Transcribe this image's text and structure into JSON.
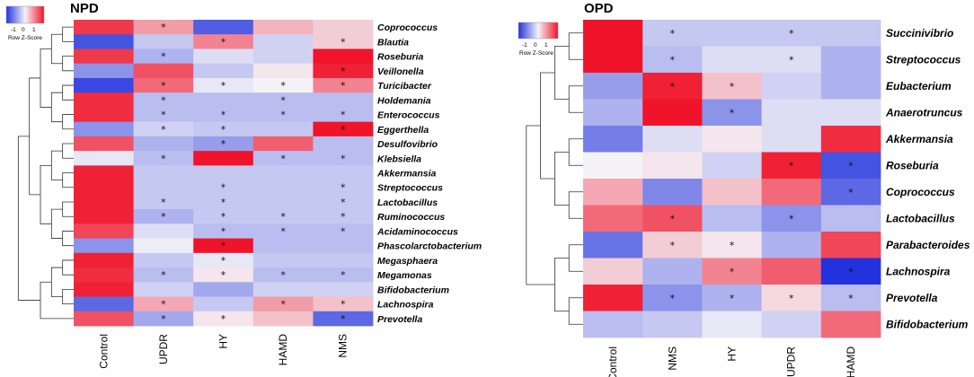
{
  "colors": {
    "low": "#2233dd",
    "mid": "#f4f2f7",
    "high": "#f0142a"
  },
  "chart_data": [
    {
      "type": "heatmap",
      "title": "NPD",
      "legend_label": "Row Z-Score",
      "legend_ticks": [
        "-1",
        "0",
        "1"
      ],
      "columns": [
        "Control",
        "UPDR",
        "HY",
        "HAMD",
        "NMS"
      ],
      "rows": [
        "Coprococcus",
        "Blautia",
        "Roseburia",
        "Veillonella",
        "Turicibacter",
        "Holdemania",
        "Enterococcus",
        "Eggerthella",
        "Desulfovibrio",
        "Klebsiella",
        "Akkermansia",
        "Streptococcus",
        "Lactobacillus",
        "Ruminococcus",
        "Acidaminococcus",
        "Phascolarctobacterium",
        "Megasphaera",
        "Megamonas",
        "Bifidobacterium",
        "Lachnospira",
        "Prevotella"
      ],
      "values": [
        [
          1.5,
          0.7,
          -1.4,
          0.5,
          0.3
        ],
        [
          -1.5,
          -0.4,
          0.9,
          -0.3,
          0.3
        ],
        [
          1.5,
          -0.6,
          -0.2,
          -0.3,
          1.8
        ],
        [
          -0.9,
          1.3,
          -0.4,
          0.1,
          1.7
        ],
        [
          -1.6,
          1.1,
          -0.1,
          0.0,
          0.9
        ],
        [
          1.6,
          -0.5,
          -0.5,
          -0.5,
          -0.5
        ],
        [
          1.6,
          -0.5,
          -0.5,
          -0.5,
          -0.5
        ],
        [
          -0.9,
          -0.3,
          -0.4,
          -0.4,
          2.0
        ],
        [
          1.3,
          -0.6,
          -0.8,
          1.2,
          -0.5
        ],
        [
          -0.1,
          -0.5,
          1.9,
          -0.5,
          -0.5
        ],
        [
          1.7,
          -0.4,
          -0.4,
          -0.4,
          -0.4
        ],
        [
          1.7,
          -0.4,
          -0.4,
          -0.4,
          -0.4
        ],
        [
          1.7,
          -0.4,
          -0.4,
          -0.4,
          -0.4
        ],
        [
          1.7,
          -0.6,
          -0.4,
          -0.4,
          -0.4
        ],
        [
          1.4,
          -0.2,
          -0.5,
          -0.5,
          -0.5
        ],
        [
          -0.9,
          -0.05,
          2.0,
          -0.5,
          -0.5
        ],
        [
          1.7,
          -0.4,
          -0.1,
          -0.4,
          -0.4
        ],
        [
          1.6,
          -0.5,
          0.1,
          -0.5,
          -0.5
        ],
        [
          1.7,
          -0.3,
          -0.7,
          -0.3,
          -0.3
        ],
        [
          -1.3,
          0.6,
          -0.4,
          0.7,
          0.4
        ],
        [
          1.3,
          -0.7,
          0.1,
          0.4,
          -1.3
        ]
      ],
      "significance_marker": "*",
      "significant": [
        [
          false,
          true,
          false,
          false,
          false
        ],
        [
          false,
          false,
          true,
          false,
          true
        ],
        [
          false,
          true,
          false,
          false,
          false
        ],
        [
          false,
          false,
          false,
          false,
          true
        ],
        [
          false,
          true,
          true,
          true,
          true
        ],
        [
          false,
          true,
          false,
          true,
          false
        ],
        [
          false,
          true,
          true,
          true,
          true
        ],
        [
          false,
          true,
          true,
          false,
          true
        ],
        [
          false,
          false,
          true,
          false,
          false
        ],
        [
          false,
          true,
          false,
          true,
          true
        ],
        [
          false,
          false,
          false,
          false,
          false
        ],
        [
          false,
          false,
          true,
          false,
          true
        ],
        [
          false,
          true,
          true,
          false,
          true
        ],
        [
          false,
          true,
          true,
          true,
          true
        ],
        [
          false,
          false,
          true,
          true,
          true
        ],
        [
          false,
          false,
          true,
          false,
          false
        ],
        [
          false,
          false,
          true,
          false,
          false
        ],
        [
          false,
          true,
          true,
          true,
          true
        ],
        [
          false,
          false,
          false,
          false,
          false
        ],
        [
          false,
          true,
          false,
          true,
          true
        ],
        [
          false,
          true,
          true,
          false,
          true
        ]
      ],
      "legend": "top-left"
    },
    {
      "type": "heatmap",
      "title": "OPD",
      "legend_label": "Row Z-Score",
      "legend_ticks": [
        "-1",
        "0",
        "1"
      ],
      "columns": [
        "Control",
        "NMS",
        "HY",
        "UPDR",
        "HAMD"
      ],
      "rows": [
        "Succinivibrio",
        "Streptococcus",
        "Eubacterium",
        "Anaerotruncus",
        "Akkermansia",
        "Roseburia",
        "Coprococcus",
        "Lactobacillus",
        "Parabacteroides",
        "Lachnospira",
        "Prevotella",
        "Bifidobacterium"
      ],
      "values": [
        [
          1.8,
          -0.4,
          -0.4,
          -0.4,
          -0.4
        ],
        [
          1.8,
          -0.5,
          -0.2,
          -0.2,
          -0.6
        ],
        [
          -0.8,
          1.7,
          0.4,
          -0.3,
          -0.6
        ],
        [
          -0.6,
          1.9,
          -0.9,
          -0.2,
          -0.2
        ],
        [
          -1.1,
          -0.2,
          0.1,
          -0.2,
          1.6
        ],
        [
          0.0,
          0.1,
          -0.3,
          1.7,
          -1.5
        ],
        [
          0.6,
          -1.0,
          0.4,
          1.1,
          -1.3
        ],
        [
          1.1,
          1.3,
          -0.5,
          -0.9,
          -0.5
        ],
        [
          -1.2,
          0.3,
          0.1,
          -0.6,
          1.4
        ],
        [
          0.3,
          -0.6,
          0.9,
          1.2,
          -1.8
        ],
        [
          1.7,
          -0.9,
          -0.6,
          0.2,
          -0.5
        ],
        [
          -0.5,
          -0.4,
          -0.1,
          -0.3,
          1.1
        ]
      ],
      "significance_marker": "*",
      "significant": [
        [
          false,
          true,
          false,
          true,
          false
        ],
        [
          false,
          true,
          false,
          true,
          false
        ],
        [
          false,
          true,
          true,
          false,
          false
        ],
        [
          false,
          false,
          true,
          false,
          false
        ],
        [
          false,
          false,
          false,
          false,
          false
        ],
        [
          false,
          false,
          false,
          true,
          true
        ],
        [
          false,
          false,
          false,
          false,
          true
        ],
        [
          false,
          true,
          false,
          true,
          false
        ],
        [
          false,
          true,
          true,
          false,
          false
        ],
        [
          false,
          false,
          true,
          false,
          true
        ],
        [
          false,
          true,
          true,
          true,
          true
        ],
        [
          false,
          false,
          false,
          false,
          false
        ]
      ],
      "legend": "top-left"
    }
  ]
}
